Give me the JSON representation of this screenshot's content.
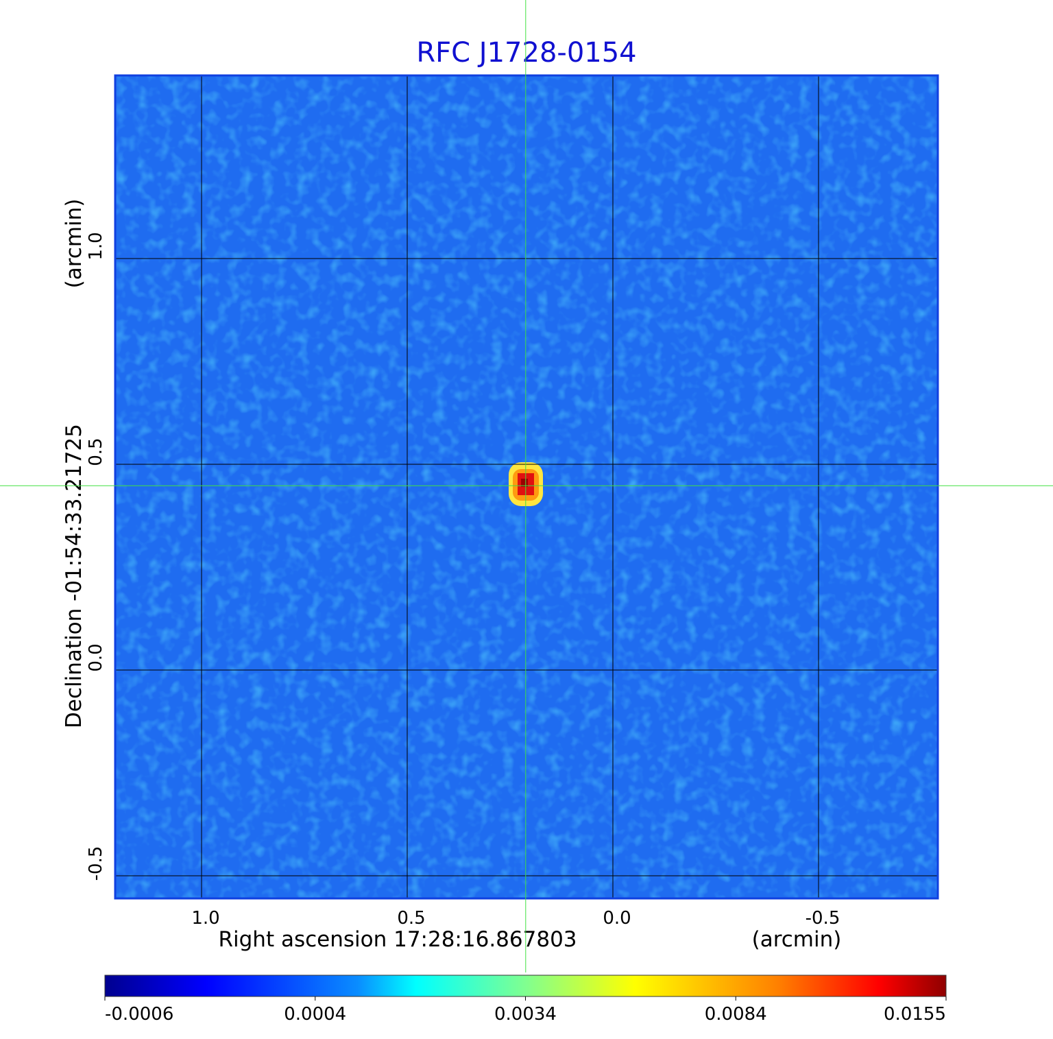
{
  "chart_data": {
    "type": "image",
    "title": "RFC J1728-0154",
    "x_label": "Right ascension  17:28:16.867803",
    "x_unit": "(arcmin)",
    "y_label": "Declination  -01:54:33.21725",
    "y_unit": "(arcmin)",
    "xlim": [
      1.21,
      -0.79
    ],
    "ylim": [
      -0.555,
      1.445
    ],
    "xticks": [
      {
        "value": 1.0,
        "label": "1.0"
      },
      0.5,
      {
        "value": 0.0,
        "label": "0.0"
      },
      -0.5
    ],
    "yticks": [
      -0.5,
      {
        "value": 0.0,
        "label": "0.0"
      },
      0.5,
      {
        "value": 1.0,
        "label": "1.0"
      }
    ],
    "grid": true,
    "crosshair": {
      "x": 0.212,
      "y": 0.448
    },
    "colorbar": {
      "colormap": "jet",
      "ticks": [
        -0.0006,
        0.0004,
        0.0034,
        0.0084,
        0.0155
      ]
    }
  }
}
